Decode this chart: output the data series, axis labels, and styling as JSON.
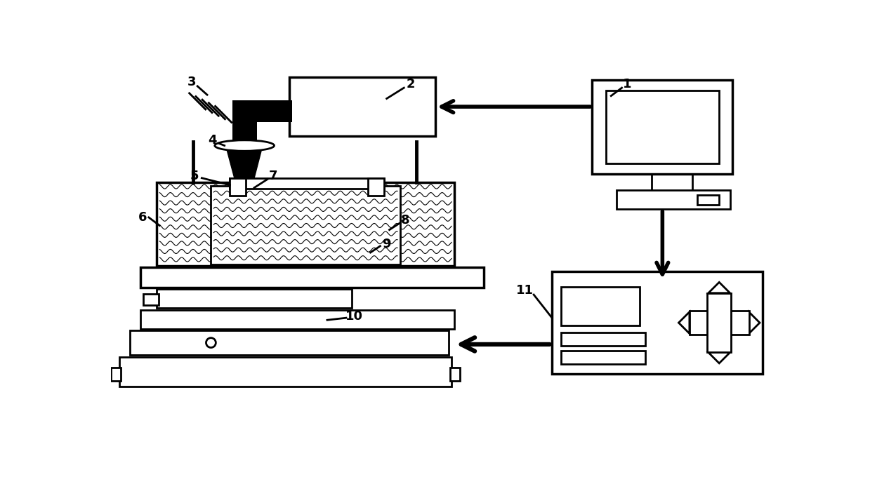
{
  "bg_color": "#ffffff",
  "line_color": "#000000",
  "lw": 2.0,
  "lw_thick": 2.5,
  "fig_width": 12.39,
  "fig_height": 6.9
}
